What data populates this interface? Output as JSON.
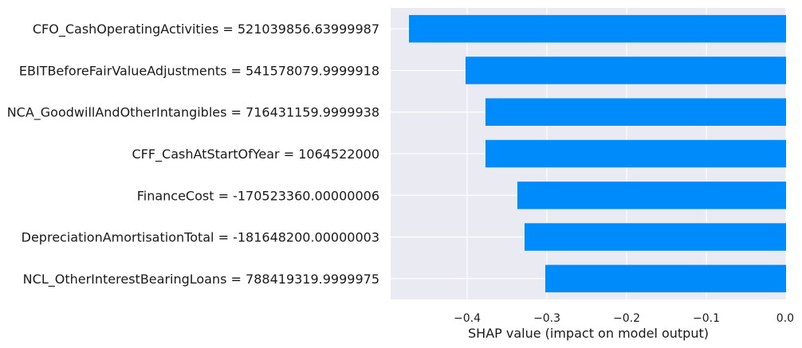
{
  "chart_data": {
    "type": "bar",
    "orientation": "horizontal",
    "categories": [
      "CFO_CashOperatingActivities = 521039856.63999987",
      "EBITBeforeFairValueAdjustments = 541578079.9999918",
      "NCA_GoodwillAndOtherIntangibles = 716431159.9999938",
      "CFF_CashAtStartOfYear = 1064522000",
      "FinanceCost = -170523360.00000006",
      "DepreciationAmortisationTotal = -181648200.00000003",
      "NCL_OtherInterestBearingLoans = 788419319.9999975"
    ],
    "values": [
      -0.473,
      -0.402,
      -0.377,
      -0.377,
      -0.337,
      -0.328,
      -0.302
    ],
    "xlabel": "SHAP value (impact on model output)",
    "ylabel": "",
    "title": "",
    "xlim": [
      -0.496,
      0.0
    ],
    "xticks": [
      -0.4,
      -0.3,
      -0.2,
      -0.1,
      0.0
    ],
    "xtick_labels": [
      "−0.4",
      "−0.3",
      "−0.2",
      "−0.1",
      "0.0"
    ],
    "grid": true,
    "colors": {
      "bar": "#008bfb",
      "plot_background": "#eaeaf2",
      "grid": "#ffffff"
    }
  }
}
